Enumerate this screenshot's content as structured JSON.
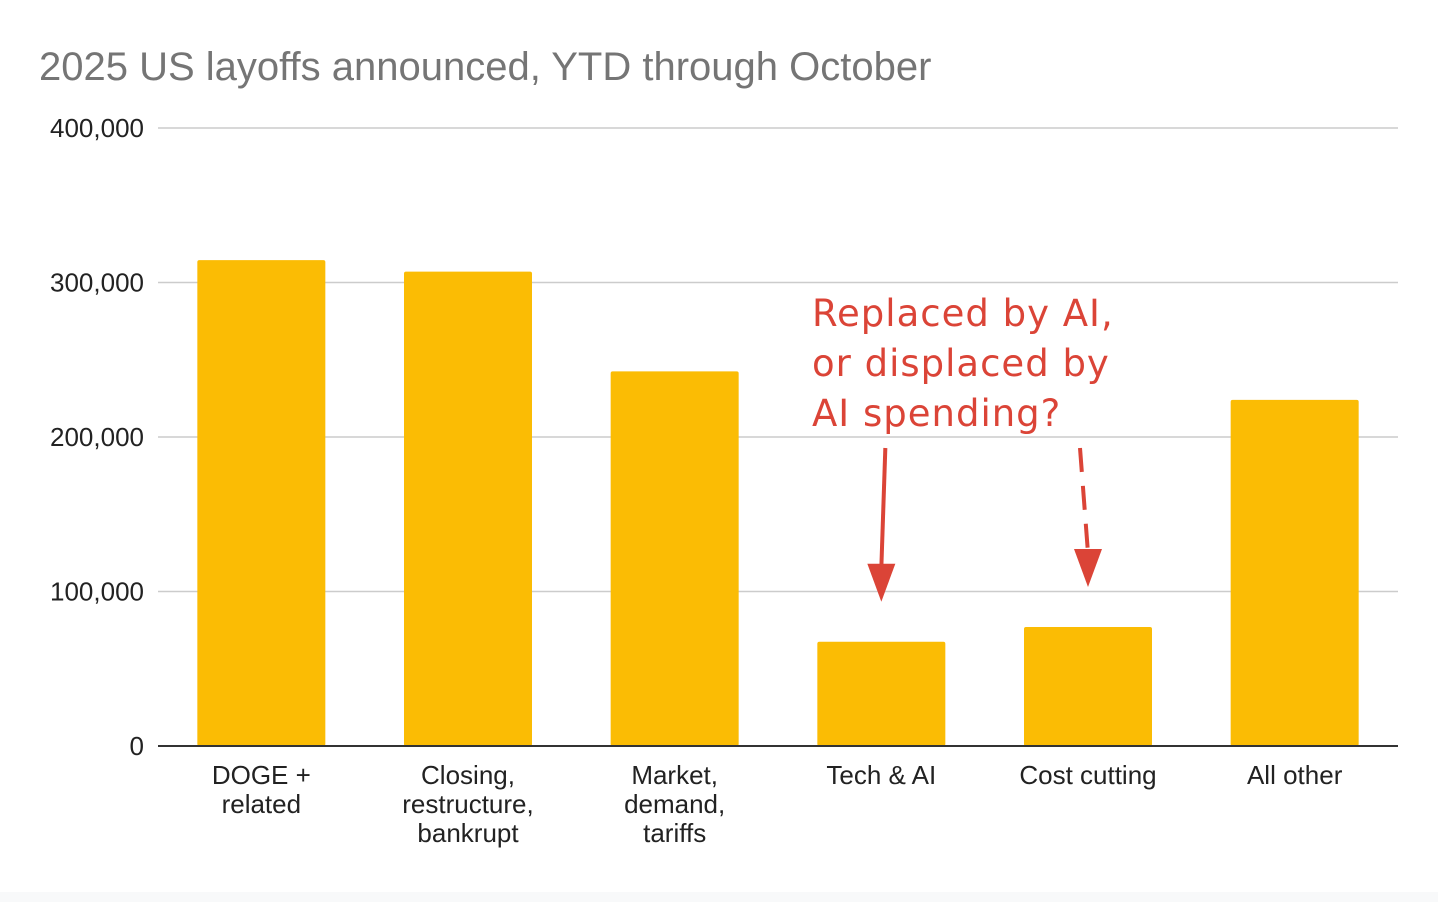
{
  "chart_data": {
    "type": "bar",
    "title": "2025 US layoffs announced, YTD through October",
    "xlabel": "",
    "ylabel": "",
    "categories": [
      [
        "DOGE +",
        "related"
      ],
      [
        "Closing,",
        "restructure,",
        "bankrupt"
      ],
      [
        "Market,",
        "demand,",
        "tariffs"
      ],
      [
        "Tech & AI"
      ],
      [
        "Cost cutting"
      ],
      [
        "All other"
      ]
    ],
    "values": [
      314500,
      307000,
      242500,
      67500,
      77000,
      224000
    ],
    "ylim": [
      0,
      400000
    ],
    "yticks": [
      0,
      100000,
      200000,
      300000,
      400000
    ],
    "ytick_labels": [
      "0",
      "100,000",
      "200,000",
      "300,000",
      "400,000"
    ],
    "grid": true,
    "legend": "none",
    "colors": {
      "bar": "#fbbc04",
      "grid": "#cccccc",
      "axis": "#333333",
      "title": "#757575",
      "tick_text": "#222222",
      "annotation": "#db4437"
    },
    "annotations": [
      {
        "id": "ai-question",
        "lines": [
          "Replaced by AI,",
          "or displaced by",
          "AI spending?"
        ],
        "arrows": [
          {
            "target_category_index": 3,
            "style": "solid"
          },
          {
            "target_category_index": 4,
            "style": "dashed"
          }
        ]
      }
    ]
  }
}
